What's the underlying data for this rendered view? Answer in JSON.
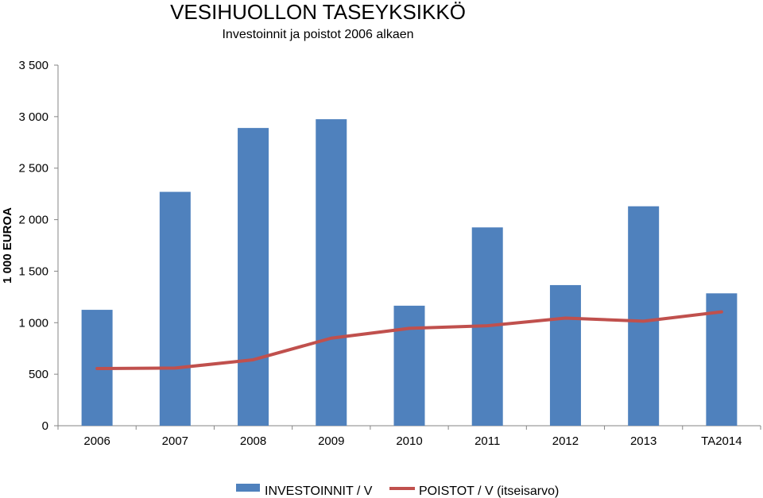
{
  "chart_data": {
    "type": "bar",
    "title": "VESIHUOLLON TASEYKSIKKÖ",
    "subtitle": "Investoinnit ja poistot 2006 alkaen",
    "ylabel": "1 000 EUROA",
    "xlabel": "",
    "ylim": [
      0,
      3500
    ],
    "yticks": [
      0,
      500,
      1000,
      1500,
      2000,
      2500,
      3000,
      3500
    ],
    "ytick_labels": [
      "0",
      "500",
      "1 000",
      "1 500",
      "2 000",
      "2 500",
      "3 000",
      "3 500"
    ],
    "categories": [
      "2006",
      "2007",
      "2008",
      "2009",
      "2010",
      "2011",
      "2012",
      "2013",
      "TA2014"
    ],
    "series": [
      {
        "name": "INVESTOINNIT / V",
        "type": "bar",
        "color": "#4F81BD",
        "values": [
          1125,
          2270,
          2890,
          2975,
          1165,
          1925,
          1365,
          2130,
          1285
        ]
      },
      {
        "name": "POISTOT / V (itseisarvo)",
        "type": "line",
        "color": "#C0504D",
        "values": [
          555,
          560,
          640,
          850,
          945,
          970,
          1045,
          1015,
          1105
        ]
      }
    ],
    "grid": false,
    "legend_position": "bottom"
  }
}
